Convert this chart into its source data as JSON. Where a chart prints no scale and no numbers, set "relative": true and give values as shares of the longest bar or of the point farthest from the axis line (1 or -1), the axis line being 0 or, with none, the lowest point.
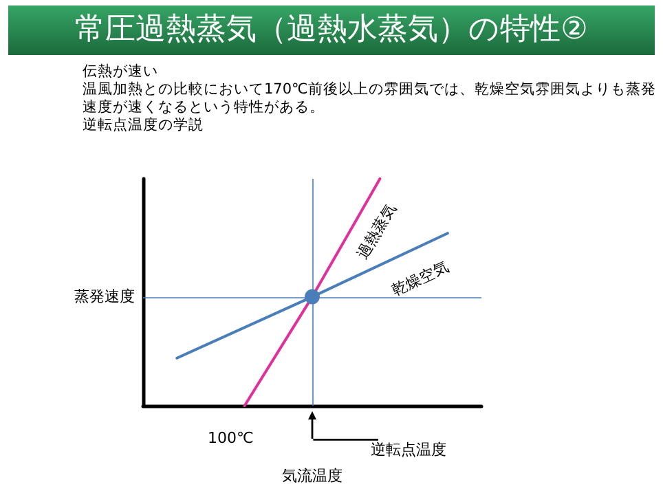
{
  "chart_data": {
    "type": "line",
    "title": "常圧過熱蒸気（過熱水蒸気）の特性②",
    "subtitle": "伝熱が速い",
    "annotations": [
      "温風加熱との比較において170℃前後以上の雰囲気では、乾燥空気雰囲気よりも蒸発速度が速くなるという特性がある。",
      "逆転点温度の学説",
      "100℃",
      "逆転点温度"
    ],
    "xlabel": "気流温度",
    "categories": [
      null,
      null,
      null,
      null,
      null,
      null,
      null,
      null,
      null,
      null,
      null,
      null,
      null,
      null,
      null,
      null,
      null,
      null,
      null,
      null,
      null
    ],
    "relative": true,
    "series": [
      {
        "name": "過熱蒸気",
        "color": "#e0309a",
        "values": [
          null,
          null,
          null,
          null,
          null,
          null,
          0,
          null,
          null,
          null,
          0.48,
          null,
          null,
          null,
          1,
          null,
          null,
          null,
          null,
          null,
          null
        ]
      },
      {
        "name": "乾燥空気",
        "color": "#4a7ebb",
        "values": [
          null,
          null,
          0.21,
          null,
          null,
          null,
          null,
          null,
          null,
          null,
          0.48,
          null,
          null,
          null,
          null,
          null,
          null,
          null,
          0.76,
          null,
          null
        ]
      }
    ],
    "ref_lines": [
      {
        "axis": "y",
        "value": 0.48,
        "label": "蒸発速度",
        "color": "#4a7ebb"
      }
    ],
    "marker": "none",
    "line_style": "solid",
    "grid": false,
    "legend": false
  }
}
